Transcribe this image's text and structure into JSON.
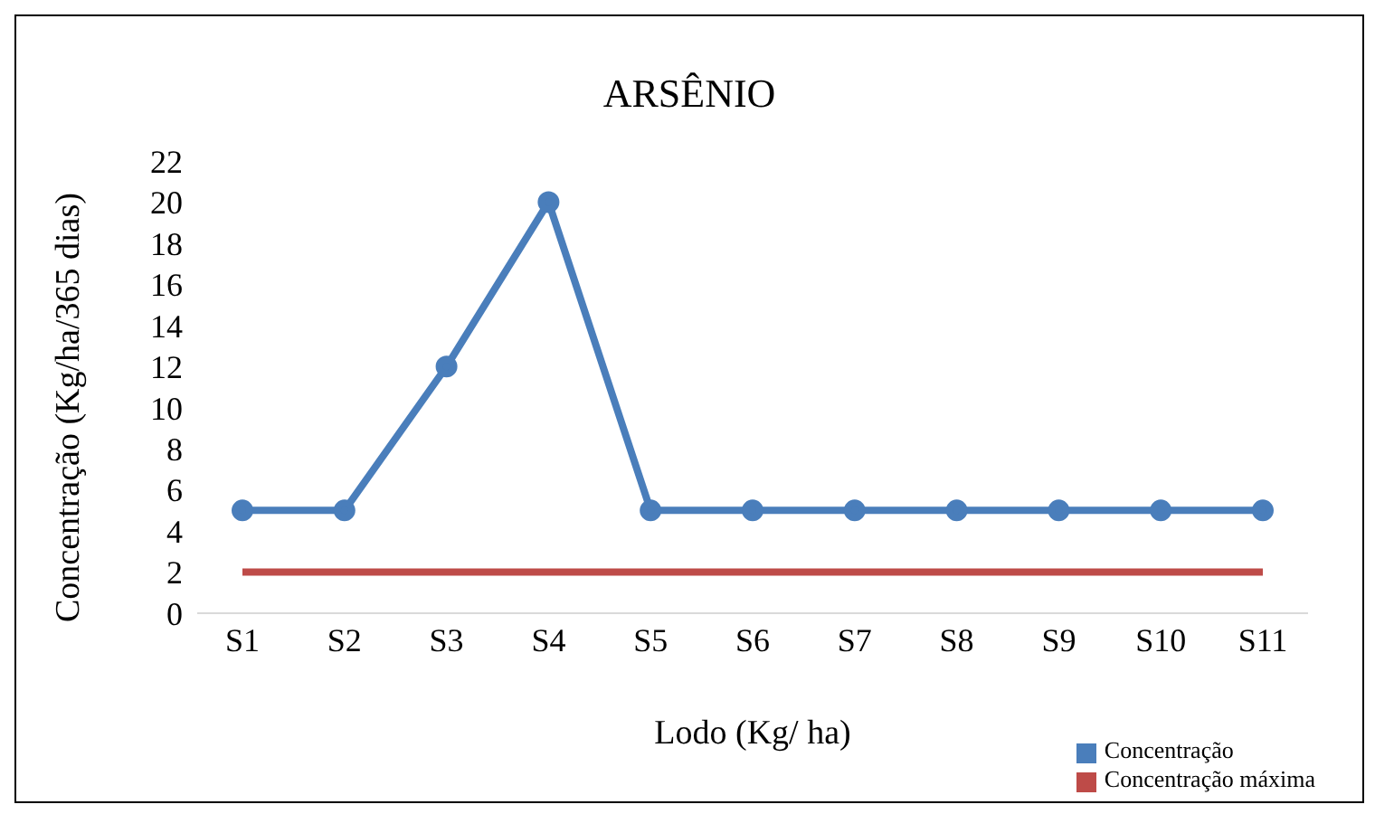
{
  "chart_data": {
    "type": "line",
    "title": "ARSÊNIO",
    "xlabel": "Lodo  (Kg/ ha)",
    "ylabel": "Concentração (Kg/ha/365 dias)",
    "categories": [
      "S1",
      "S2",
      "S3",
      "S4",
      "S5",
      "S6",
      "S7",
      "S8",
      "S9",
      "S10",
      "S11"
    ],
    "series": [
      {
        "name": "Concentração",
        "color": "#4a7ebb",
        "marker": "circle",
        "values": [
          5,
          5,
          12,
          20,
          5,
          5,
          5,
          5,
          5,
          5,
          5
        ]
      },
      {
        "name": "Concentração máxima",
        "color": "#be4b48",
        "marker": "none",
        "values": [
          2,
          2,
          2,
          2,
          2,
          2,
          2,
          2,
          2,
          2,
          2
        ]
      }
    ],
    "ylim": [
      0,
      22
    ],
    "yticks": [
      0,
      2,
      4,
      6,
      8,
      10,
      12,
      14,
      16,
      18,
      20,
      22
    ],
    "legend": "bottom right"
  }
}
